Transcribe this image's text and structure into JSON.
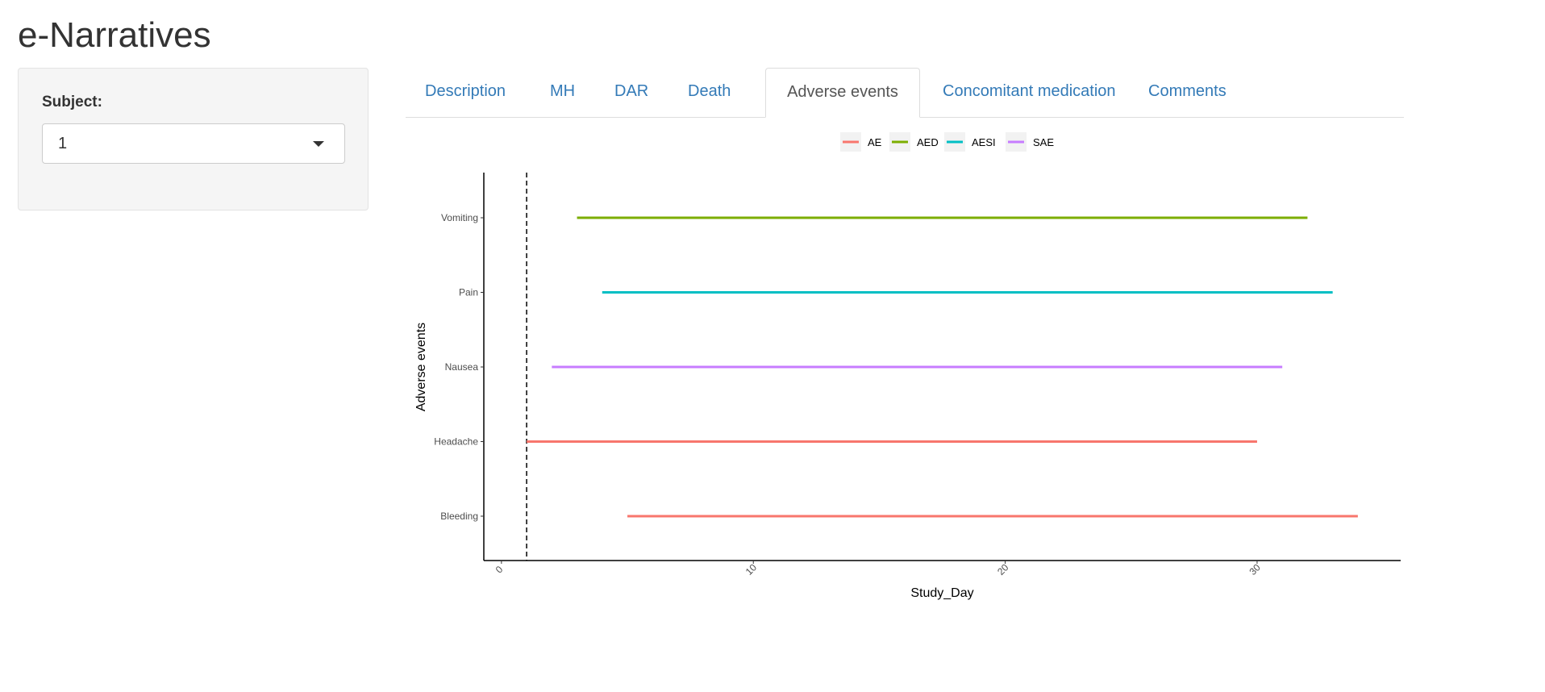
{
  "app": {
    "title": "e-Narratives"
  },
  "sidebar": {
    "subject_label": "Subject:",
    "subject_value": "1"
  },
  "tabs": [
    {
      "label": "Description",
      "active": false
    },
    {
      "label": "MH",
      "active": false
    },
    {
      "label": "DAR",
      "active": false
    },
    {
      "label": "Death",
      "active": false
    },
    {
      "label": "Adverse events",
      "active": true
    },
    {
      "label": "Concomitant medication",
      "active": false
    },
    {
      "label": "Comments",
      "active": false
    }
  ],
  "chart_data": {
    "type": "line",
    "xlabel": "Study_Day",
    "ylabel": "Adverse events",
    "xlim": [
      -0.7,
      35.7
    ],
    "xticks": [
      0,
      10,
      20,
      30
    ],
    "categories": [
      "Bleeding",
      "Headache",
      "Nausea",
      "Pain",
      "Vomiting"
    ],
    "reference_line": {
      "x": 1,
      "style": "dashed"
    },
    "legend": {
      "position": "top",
      "entries": [
        {
          "name": "AE",
          "color": "#F8766D"
        },
        {
          "name": "AED",
          "color": "#7CAE00"
        },
        {
          "name": "AESI",
          "color": "#00BFC4"
        },
        {
          "name": "SAE",
          "color": "#C77CFF"
        }
      ]
    },
    "segments": [
      {
        "event": "Vomiting",
        "type": "AED",
        "start": 3,
        "end": 32
      },
      {
        "event": "Pain",
        "type": "AESI",
        "start": 4,
        "end": 33
      },
      {
        "event": "Nausea",
        "type": "SAE",
        "start": 2,
        "end": 31
      },
      {
        "event": "Headache",
        "type": "AE",
        "start": 1,
        "end": 30
      },
      {
        "event": "Bleeding",
        "type": "AE",
        "start": 5,
        "end": 34
      }
    ],
    "grid": false
  }
}
